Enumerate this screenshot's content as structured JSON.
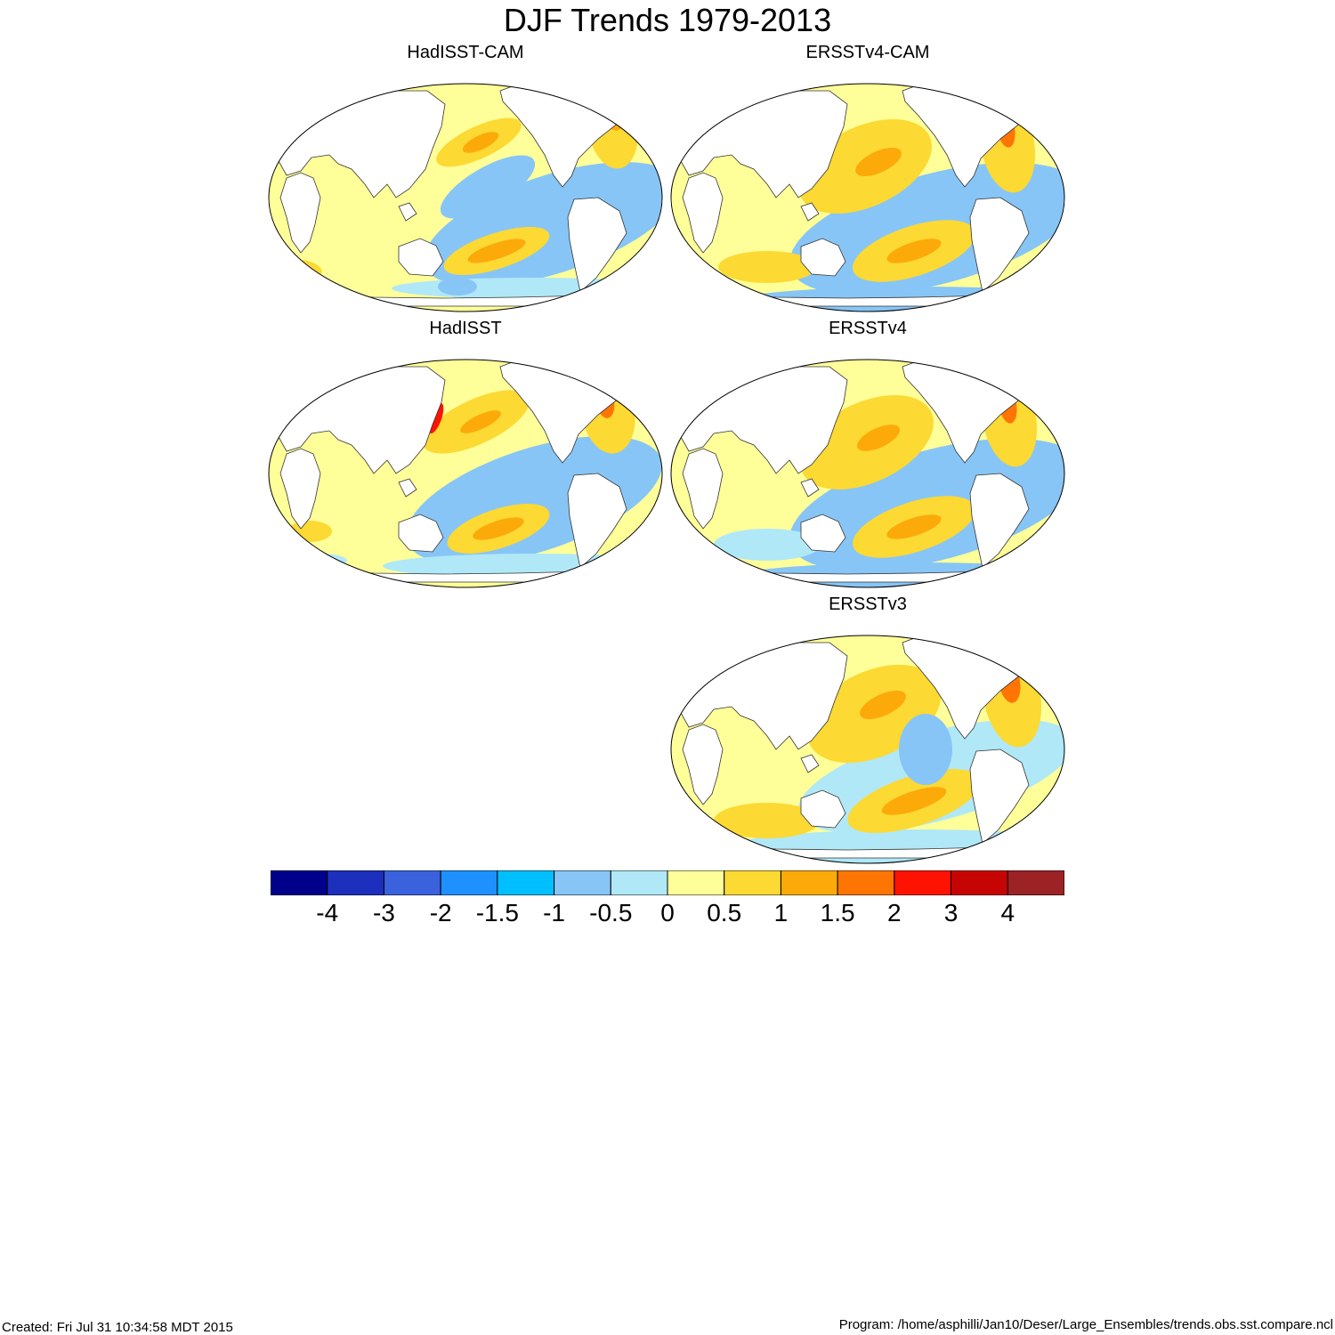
{
  "title": "DJF Trends 1979-2013",
  "panels": [
    {
      "title": "HadISST-CAM",
      "variant": "had-cam"
    },
    {
      "title": "ERSSTv4-CAM",
      "variant": "ers-cam"
    },
    {
      "title": "HadISST",
      "variant": "had"
    },
    {
      "title": "ERSSTv4",
      "variant": "ers4"
    },
    {
      "title": "ERSSTv3",
      "variant": "ers3"
    }
  ],
  "colorbar": {
    "colors": [
      "#00008b",
      "#1c2fbd",
      "#3a62dc",
      "#1e90ff",
      "#00bfff",
      "#87c5f6",
      "#b0e8f7",
      "#ffff99",
      "#fcd933",
      "#fcaa0a",
      "#ff7504",
      "#ff1202",
      "#c70404",
      "#9b2225"
    ],
    "labels": [
      "-4",
      "-3",
      "-2",
      "-1.5",
      "-1",
      "-0.5",
      "0",
      "0.5",
      "1",
      "1.5",
      "2",
      "3",
      "4"
    ]
  },
  "footer": {
    "created": "Created: Fri Jul 31 10:34:58 MDT 2015",
    "program": "Program: /home/asphilli/Jan10/Deser/Large_Ensembles/trends.obs.sst.compare.ncl"
  }
}
